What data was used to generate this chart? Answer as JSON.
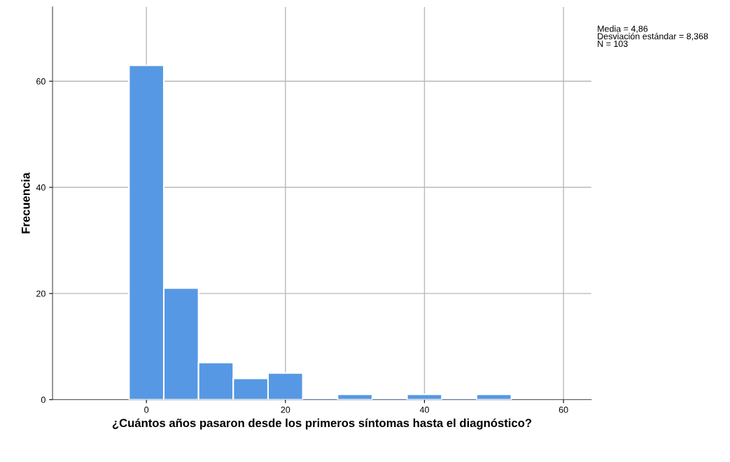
{
  "chart_data": {
    "type": "histogram",
    "xlabel": "¿Cuántos años pasaron desde los primeros síntomas hasta el diagnóstico?",
    "ylabel": "Frecuencia",
    "bins": [
      -2.5,
      2.5,
      7.5,
      12.5,
      17.5,
      22.5,
      27.5,
      32.5,
      37.5,
      42.5,
      47.5,
      52.5
    ],
    "values": [
      63,
      21,
      7,
      4,
      5,
      0,
      1,
      0,
      1,
      0,
      1
    ],
    "color": "#5698e4",
    "xlim": [
      -13.5,
      64
    ],
    "xticks": [
      0,
      20,
      40,
      60
    ],
    "ylim": [
      0,
      74
    ],
    "yticks": [
      0,
      20,
      40,
      60
    ],
    "grid": true,
    "annotations": [
      "Media = 4,86\nDesviación estándar = 8,368\nN = 103"
    ]
  }
}
